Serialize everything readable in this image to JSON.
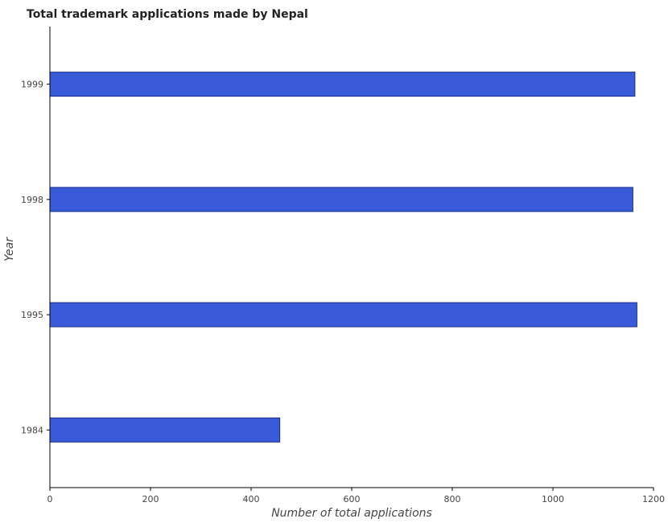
{
  "chart_data": {
    "type": "bar",
    "orientation": "horizontal",
    "title": "Total trademark applications made by Nepal",
    "xlabel": "Number of total applications",
    "ylabel": "Year",
    "categories": [
      "1984",
      "1995",
      "1998",
      "1999"
    ],
    "values": [
      457,
      1167,
      1159,
      1163
    ],
    "xlim": [
      0,
      1200
    ],
    "xticks": [
      0,
      200,
      400,
      600,
      800,
      1000,
      1200
    ],
    "grid": false,
    "bar_color": "#3a5bd9"
  }
}
